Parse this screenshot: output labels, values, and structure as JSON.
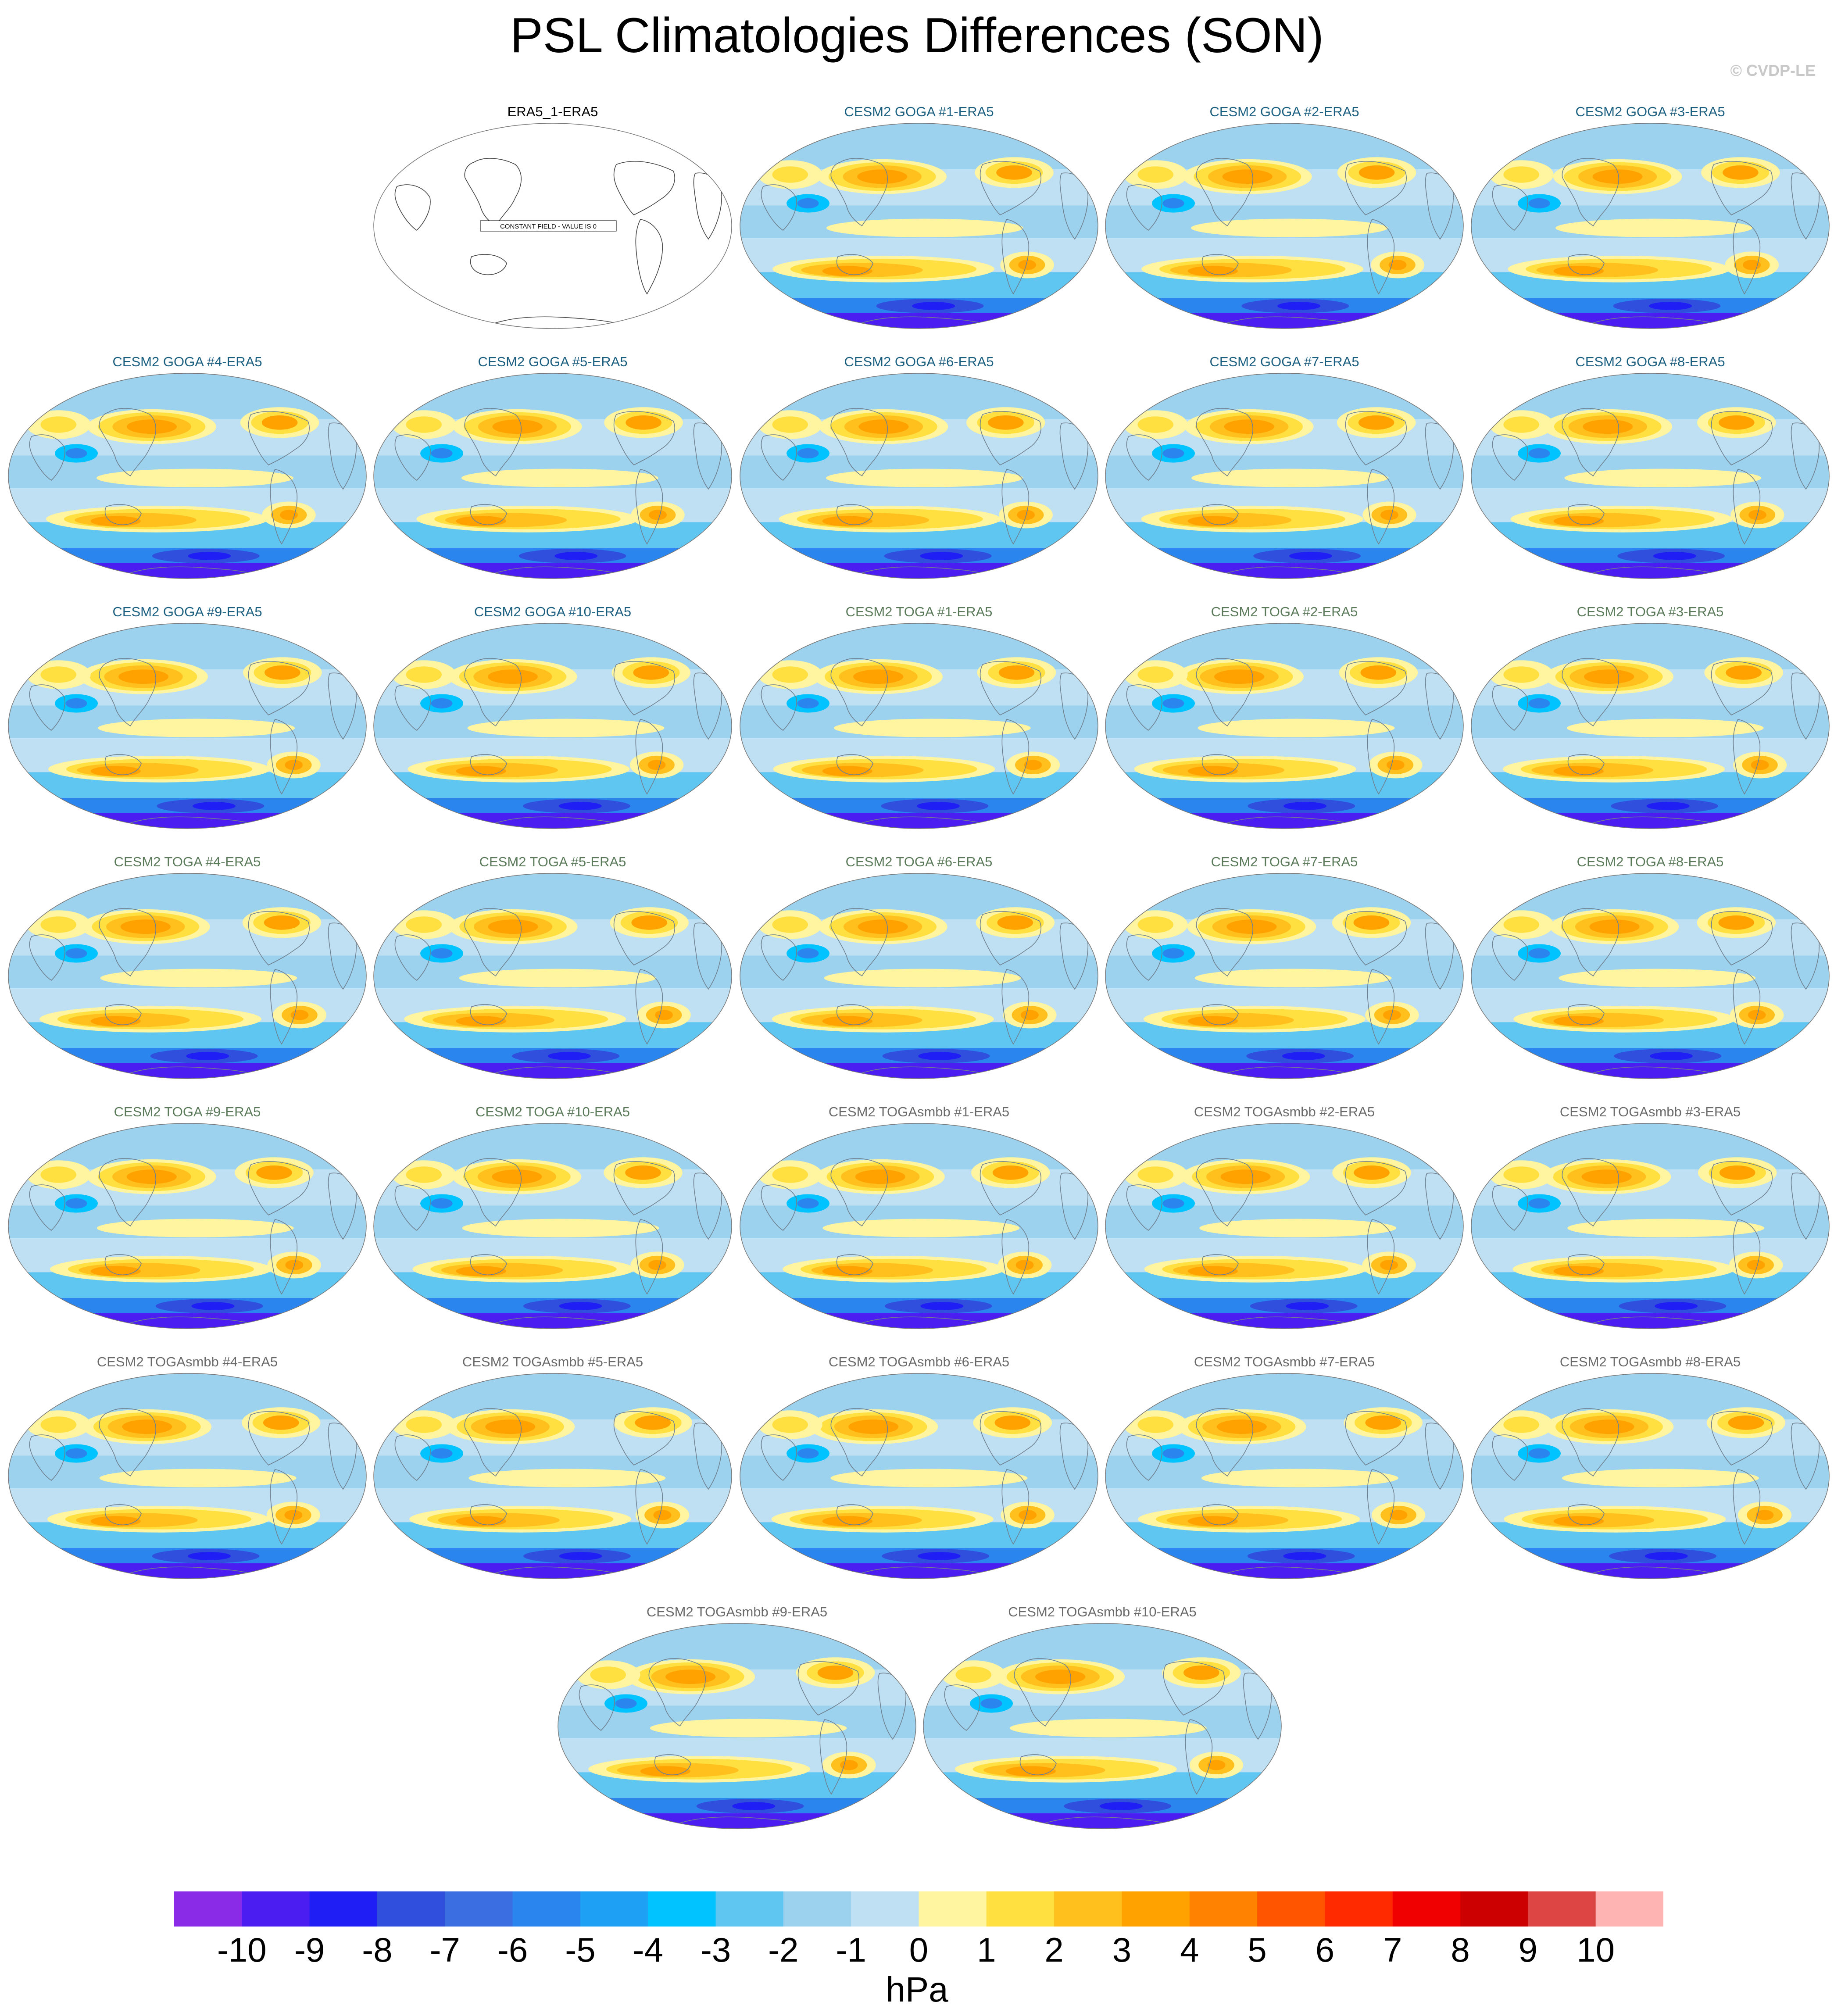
{
  "title": "PSL Climatologies Differences (SON)",
  "credit": "© CVDP-LE",
  "colors": {
    "title_goga": "#1a5f80",
    "title_toga": "#5a7a5a",
    "title_smbb": "#6a6a6a",
    "title_obs": "#000000"
  },
  "chart_data": {
    "type": "heatmap",
    "description_variable": "PSL",
    "projection": "robinson",
    "units": "hPa",
    "panels": [
      {
        "title": "ERA5_1-ERA5",
        "group": "obs",
        "constant_field": "CONSTANT FIELD - VALUE IS 0"
      },
      {
        "title": "CESM2 GOGA #1-ERA5",
        "group": "goga"
      },
      {
        "title": "CESM2 GOGA #2-ERA5",
        "group": "goga"
      },
      {
        "title": "CESM2 GOGA #3-ERA5",
        "group": "goga"
      },
      {
        "title": "CESM2 GOGA #4-ERA5",
        "group": "goga"
      },
      {
        "title": "CESM2 GOGA #5-ERA5",
        "group": "goga"
      },
      {
        "title": "CESM2 GOGA #6-ERA5",
        "group": "goga"
      },
      {
        "title": "CESM2 GOGA #7-ERA5",
        "group": "goga"
      },
      {
        "title": "CESM2 GOGA #8-ERA5",
        "group": "goga"
      },
      {
        "title": "CESM2 GOGA #9-ERA5",
        "group": "goga"
      },
      {
        "title": "CESM2 GOGA #10-ERA5",
        "group": "goga"
      },
      {
        "title": "CESM2 TOGA #1-ERA5",
        "group": "toga"
      },
      {
        "title": "CESM2 TOGA #2-ERA5",
        "group": "toga"
      },
      {
        "title": "CESM2 TOGA #3-ERA5",
        "group": "toga"
      },
      {
        "title": "CESM2 TOGA #4-ERA5",
        "group": "toga"
      },
      {
        "title": "CESM2 TOGA #5-ERA5",
        "group": "toga"
      },
      {
        "title": "CESM2 TOGA #6-ERA5",
        "group": "toga"
      },
      {
        "title": "CESM2 TOGA #7-ERA5",
        "group": "toga"
      },
      {
        "title": "CESM2 TOGA #8-ERA5",
        "group": "toga"
      },
      {
        "title": "CESM2 TOGA #9-ERA5",
        "group": "toga"
      },
      {
        "title": "CESM2 TOGA #10-ERA5",
        "group": "toga"
      },
      {
        "title": "CESM2 TOGAsmbb #1-ERA5",
        "group": "smbb"
      },
      {
        "title": "CESM2 TOGAsmbb #2-ERA5",
        "group": "smbb"
      },
      {
        "title": "CESM2 TOGAsmbb #3-ERA5",
        "group": "smbb"
      },
      {
        "title": "CESM2 TOGAsmbb #4-ERA5",
        "group": "smbb"
      },
      {
        "title": "CESM2 TOGAsmbb #5-ERA5",
        "group": "smbb"
      },
      {
        "title": "CESM2 TOGAsmbb #6-ERA5",
        "group": "smbb"
      },
      {
        "title": "CESM2 TOGAsmbb #7-ERA5",
        "group": "smbb"
      },
      {
        "title": "CESM2 TOGAsmbb #8-ERA5",
        "group": "smbb"
      },
      {
        "title": "CESM2 TOGAsmbb #9-ERA5",
        "group": "smbb"
      },
      {
        "title": "CESM2 TOGAsmbb #10-ERA5",
        "group": "smbb"
      }
    ],
    "colorbar": {
      "levels": [
        -10,
        -9,
        -8,
        -7,
        -6,
        -5,
        -4,
        -3,
        -2,
        -1,
        0,
        1,
        2,
        3,
        4,
        5,
        6,
        7,
        8,
        9,
        10
      ],
      "colors": [
        "#8a2be8",
        "#4b1df0",
        "#1e1ef5",
        "#2f4fdc",
        "#3b6ee0",
        "#2b85ee",
        "#1ea0f5",
        "#00c3ff",
        "#5fc6f2",
        "#9dd2ee",
        "#bfe0f2",
        "#fff5a0",
        "#ffe040",
        "#ffc01e",
        "#ffa200",
        "#ff8200",
        "#ff5500",
        "#ff2a00",
        "#f00000",
        "#cc0000",
        "#dd4444",
        "#ffb4b4"
      ],
      "label": "hPa"
    }
  }
}
